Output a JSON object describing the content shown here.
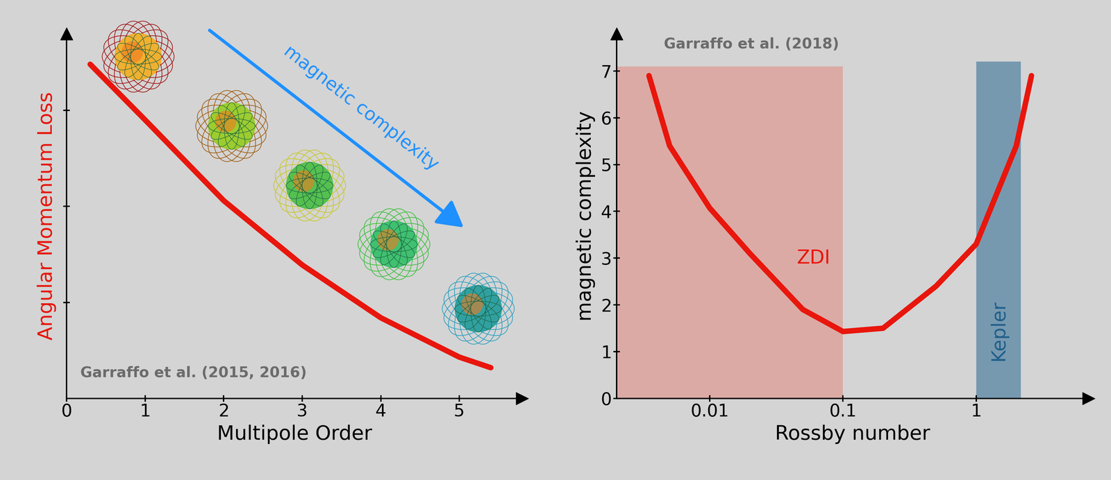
{
  "chart_data": [
    {
      "type": "line",
      "x": [
        0.3,
        1,
        2,
        3,
        4,
        5,
        5.4
      ],
      "values": [
        3.48,
        2.9,
        2.06,
        1.39,
        0.84,
        0.43,
        0.32
      ],
      "color": "#e8160c",
      "xlim": [
        0,
        5.8
      ],
      "ylim": [
        0,
        3.8
      ],
      "xticks": [
        0,
        1,
        2,
        3,
        4,
        5
      ],
      "yticks": [
        1,
        2,
        3
      ],
      "tick_labels": "x",
      "xlabel": "Multipole Order",
      "ylabel": "Angular Momentum Loss",
      "annotations": [
        {
          "text": "Garraffo et al. (2015, 2016)",
          "color": "#6b6b6b"
        },
        {
          "text": "magnetic complexity",
          "color": "#1e90ff"
        }
      ]
    },
    {
      "type": "line",
      "log": "x",
      "x": [
        0.0035,
        0.005,
        0.01,
        0.02,
        0.05,
        0.1,
        0.2,
        0.5,
        1,
        2,
        2.6
      ],
      "values": [
        6.9,
        5.4,
        4.07,
        3.1,
        1.9,
        1.43,
        1.5,
        2.4,
        3.3,
        5.4,
        6.9
      ],
      "color": "#e8160c",
      "xlim": [
        0.002,
        7
      ],
      "ylim": [
        0,
        7.8
      ],
      "xticks": [
        0.01,
        0.1,
        1
      ],
      "yticks": [
        0,
        1,
        2,
        3,
        4,
        5,
        6,
        7
      ],
      "xlabel": "Rossby number",
      "ylabel": "magnetic complexity",
      "annotations": [
        {
          "text": "Garraffo et al. (2018)",
          "color": "#6b6b6b"
        }
      ],
      "regions": [
        {
          "name": "ZDI",
          "x": [
            0.002,
            0.1
          ],
          "y": [
            0,
            7.1
          ],
          "color": "#dcaaa5",
          "text_color": "#e8160c"
        },
        {
          "name": "Kepler",
          "x": [
            1,
            2.16
          ],
          "y": [
            0,
            7.2
          ],
          "color": "#7799b0",
          "text_color": "#1f5f8a"
        }
      ]
    }
  ]
}
